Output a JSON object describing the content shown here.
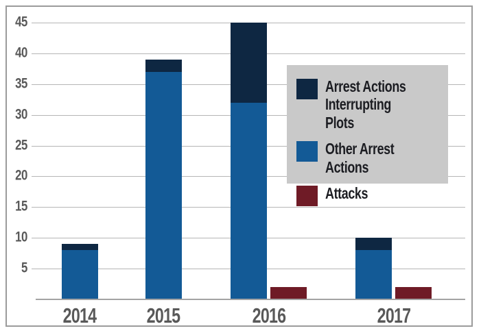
{
  "chart_data": {
    "type": "bar",
    "variant": "stacked-plus-clustered",
    "title": "",
    "xlabel": "",
    "ylabel": "",
    "categories": [
      "2014",
      "2015",
      "2016",
      "2017"
    ],
    "series": [
      {
        "name": "Arrest Actions Interrupting Plots",
        "color": "#0e2742",
        "role": "stack-top",
        "values": [
          1,
          2,
          13,
          2
        ]
      },
      {
        "name": "Other Arrest Actions",
        "color": "#135a96",
        "role": "stack-bottom",
        "values": [
          8,
          37,
          32,
          8
        ]
      },
      {
        "name": "Attacks",
        "color": "#6f1b26",
        "role": "separate-bar",
        "values": [
          0,
          0,
          2,
          2
        ]
      }
    ],
    "stacked_totals": [
      9,
      39,
      45,
      10
    ],
    "ylim": [
      0,
      45
    ],
    "ytick_step": 5,
    "ytick_labels": [
      "5",
      "10",
      "15",
      "20",
      "25",
      "30",
      "35",
      "40",
      "45"
    ],
    "grid": true,
    "legend_position": "upper-right"
  },
  "palette": {
    "grid_color": "#b5b5b5",
    "axis_color": "#a3a3a3",
    "frame_border": "#9b9b9b",
    "tick_label_color": "#595959",
    "legend_background": "#c9c9c9",
    "legend_text_color": "#1c1d22",
    "background": "#ffffff"
  }
}
